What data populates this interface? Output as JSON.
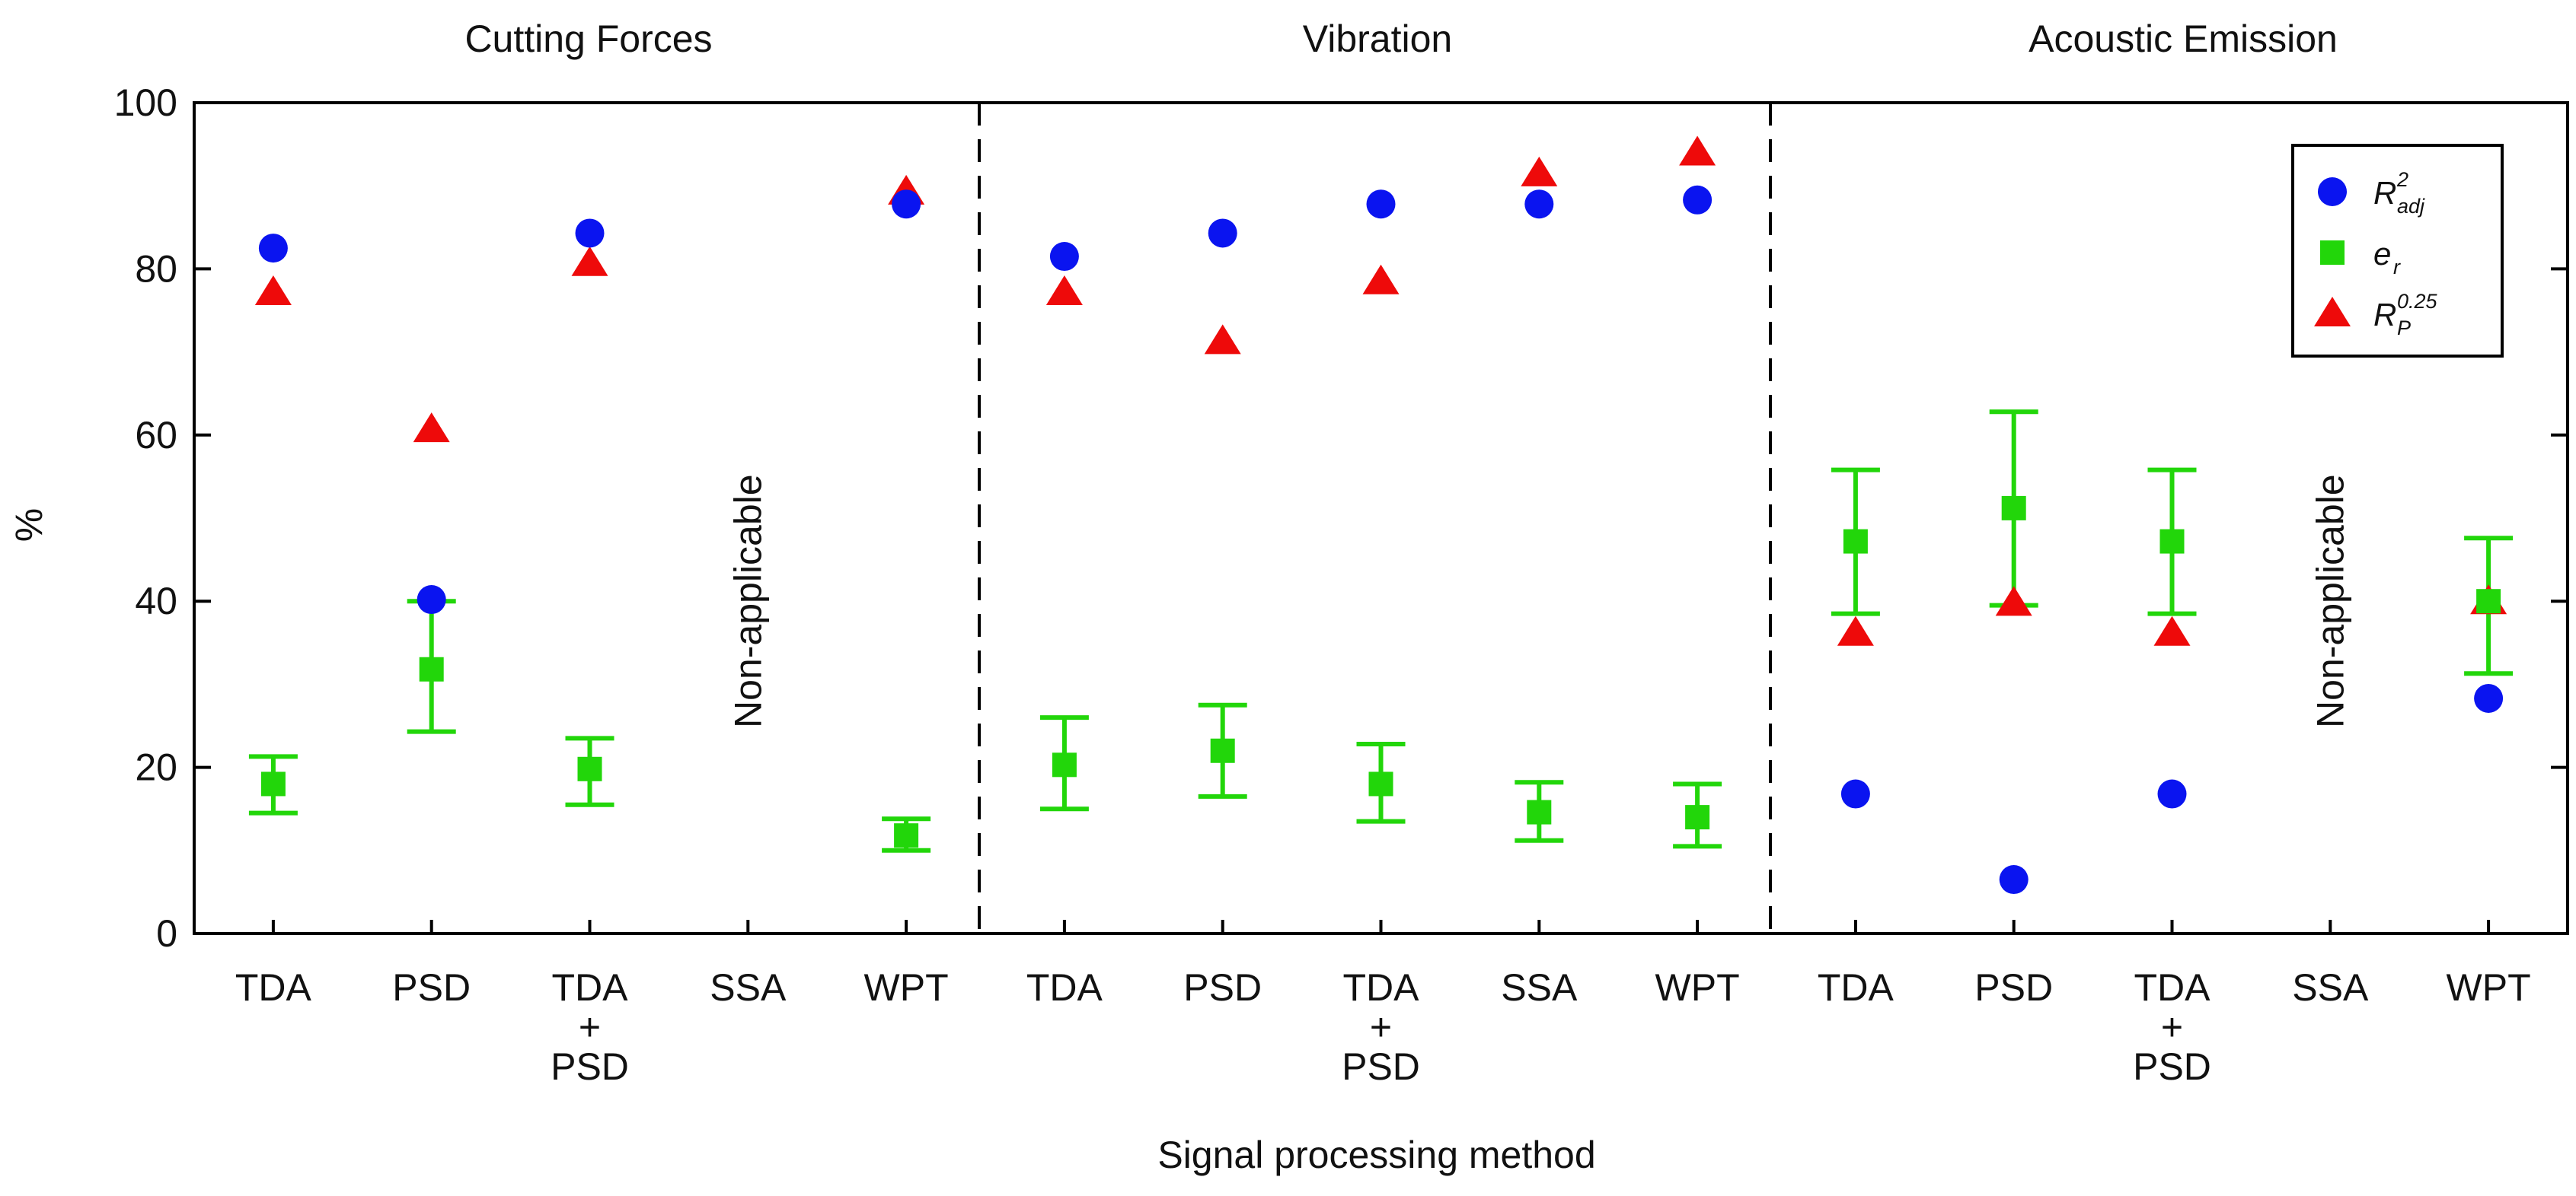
{
  "chart_data": {
    "type": "scatter",
    "title": "",
    "xlabel": "Signal processing method",
    "ylabel": "%",
    "ylim": [
      0,
      100
    ],
    "yticks": [
      "0",
      "20",
      "40",
      "60",
      "80",
      "100"
    ],
    "groups": [
      {
        "title": "Cutting Forces",
        "categories": [
          [
            "TDA"
          ],
          [
            "PSD"
          ],
          [
            "TDA",
            "+",
            "PSD"
          ],
          [
            "SSA"
          ],
          [
            "WPT"
          ]
        ],
        "r2adj": [
          82.5,
          40.2,
          84.3,
          null,
          87.8
        ],
        "er": [
          18.0,
          31.8,
          19.8,
          null,
          11.8
        ],
        "er_low": [
          14.5,
          24.3,
          15.5,
          null,
          10.0
        ],
        "er_high": [
          21.3,
          40.0,
          23.5,
          null,
          13.8
        ],
        "rp": [
          77.2,
          60.7,
          80.7,
          null,
          89.3
        ],
        "note": "Non-applicable",
        "note_index": 3
      },
      {
        "title": "Vibration",
        "categories": [
          [
            "TDA"
          ],
          [
            "PSD"
          ],
          [
            "TDA",
            "+",
            "PSD"
          ],
          [
            "SSA"
          ],
          [
            "WPT"
          ]
        ],
        "r2adj": [
          81.5,
          84.3,
          87.8,
          87.8,
          88.3
        ],
        "er": [
          20.3,
          22.0,
          18.0,
          14.6,
          14.0
        ],
        "er_low": [
          15.0,
          16.5,
          13.5,
          11.2,
          10.5
        ],
        "er_high": [
          26.0,
          27.5,
          22.8,
          18.2,
          18.0
        ],
        "rp": [
          77.2,
          71.3,
          78.5,
          91.5,
          94.0
        ],
        "note": null,
        "note_index": null
      },
      {
        "title": "Acoustic Emission",
        "categories": [
          [
            "TDA"
          ],
          [
            "PSD"
          ],
          [
            "TDA",
            "+",
            "PSD"
          ],
          [
            "SSA"
          ],
          [
            "WPT"
          ]
        ],
        "r2adj": [
          16.8,
          6.5,
          16.8,
          null,
          28.3
        ],
        "er": [
          47.2,
          51.2,
          47.2,
          null,
          40.0
        ],
        "er_low": [
          38.5,
          39.5,
          38.5,
          null,
          31.3
        ],
        "er_high": [
          55.8,
          62.8,
          55.8,
          null,
          47.6
        ],
        "rp": [
          36.2,
          39.8,
          36.2,
          null,
          40.0
        ],
        "note": "Non-applicable",
        "note_index": 3
      }
    ],
    "legend": {
      "position": "top-right",
      "entries": [
        {
          "key": "r2adj",
          "main": "R",
          "sup": "2",
          "sub": "adj",
          "marker": "circle",
          "color": "#0a14f0"
        },
        {
          "key": "er",
          "main": "e",
          "sup": "",
          "sub": "r",
          "marker": "square",
          "color": "#22d60a"
        },
        {
          "key": "rp",
          "main": "R",
          "sup": "0.25",
          "sub": "P",
          "marker": "triangle",
          "color": "#ee0a0a"
        }
      ]
    }
  }
}
